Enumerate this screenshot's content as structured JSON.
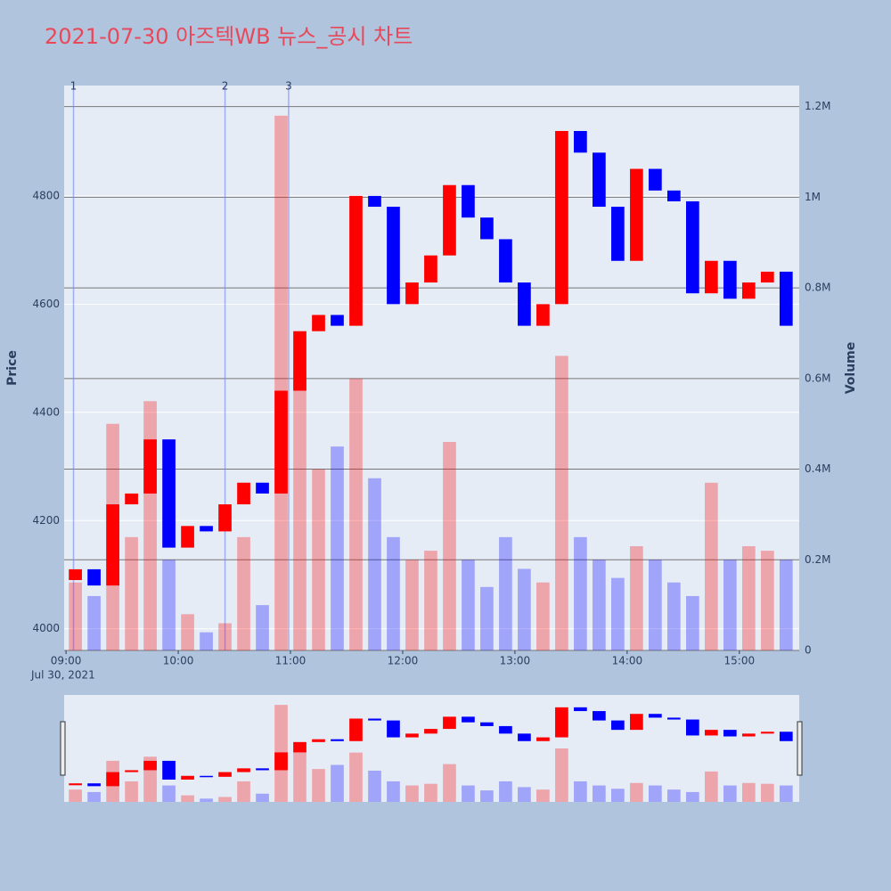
{
  "chart_data": {
    "type": "candlestick",
    "title": "2021-07-30 아즈텍WB 뉴스_공시 차트",
    "y_label": "Price",
    "y2_label": "Volume",
    "date_label": "Jul 30, 2021",
    "up_color": "#ff0000",
    "down_color": "#0000ff",
    "x": [
      "09:00",
      "09:10",
      "09:20",
      "09:30",
      "09:40",
      "09:50",
      "10:00",
      "10:10",
      "10:20",
      "10:30",
      "10:40",
      "10:50",
      "11:00",
      "11:10",
      "11:20",
      "11:30",
      "11:40",
      "11:50",
      "12:00",
      "12:10",
      "12:20",
      "12:30",
      "12:40",
      "12:50",
      "13:00",
      "13:10",
      "13:20",
      "13:30",
      "13:40",
      "13:50",
      "14:00",
      "14:10",
      "14:20",
      "14:30",
      "14:40",
      "14:50",
      "15:00",
      "15:10",
      "15:20"
    ],
    "open": [
      4090,
      4110,
      4080,
      4230,
      4250,
      4350,
      4150,
      4190,
      4180,
      4230,
      4270,
      4250,
      4440,
      4550,
      4580,
      4560,
      4800,
      4780,
      4600,
      4640,
      4690,
      4820,
      4760,
      4720,
      4640,
      4560,
      4600,
      4920,
      4880,
      4780,
      4680,
      4850,
      4810,
      4790,
      4620,
      4680,
      4610,
      4640,
      4660
    ],
    "close": [
      4110,
      4080,
      4230,
      4250,
      4350,
      4150,
      4190,
      4180,
      4230,
      4270,
      4250,
      4440,
      4550,
      4580,
      4560,
      4800,
      4780,
      4600,
      4640,
      4690,
      4820,
      4760,
      4720,
      4640,
      4560,
      4600,
      4920,
      4880,
      4780,
      4680,
      4850,
      4810,
      4790,
      4620,
      4680,
      4610,
      4640,
      4660,
      4560
    ],
    "volume": [
      150000,
      120000,
      500000,
      250000,
      550000,
      200000,
      80000,
      40000,
      60000,
      250000,
      100000,
      1180000,
      620000,
      400000,
      450000,
      600000,
      380000,
      250000,
      200000,
      220000,
      460000,
      200000,
      140000,
      250000,
      180000,
      150000,
      650000,
      250000,
      200000,
      160000,
      230000,
      200000,
      150000,
      120000,
      370000,
      200000,
      230000,
      220000,
      200000
    ],
    "annotations": [
      {
        "x": "09:04",
        "label": "1"
      },
      {
        "x": "10:25",
        "label": "2"
      },
      {
        "x": "10:59",
        "label": "3"
      }
    ],
    "xlim": [
      "08:59",
      "15:32"
    ],
    "xticks": [
      "09:00",
      "10:00",
      "11:00",
      "12:00",
      "13:00",
      "14:00",
      "15:00"
    ],
    "ylim": [
      3960,
      5004
    ],
    "yticks": [
      4000,
      4200,
      4400,
      4600,
      4800
    ],
    "y2lim": [
      0,
      1246500
    ],
    "y2ticks": [
      0,
      {
        "value": 200000,
        "label": "0.2M"
      },
      {
        "value": 400000,
        "label": "0.4M"
      },
      {
        "value": 600000,
        "label": "0.6M"
      },
      {
        "value": 800000,
        "label": "0.8M"
      },
      {
        "value": 1000000,
        "label": "1M"
      },
      {
        "value": 1200000,
        "label": "1.2M"
      }
    ]
  }
}
